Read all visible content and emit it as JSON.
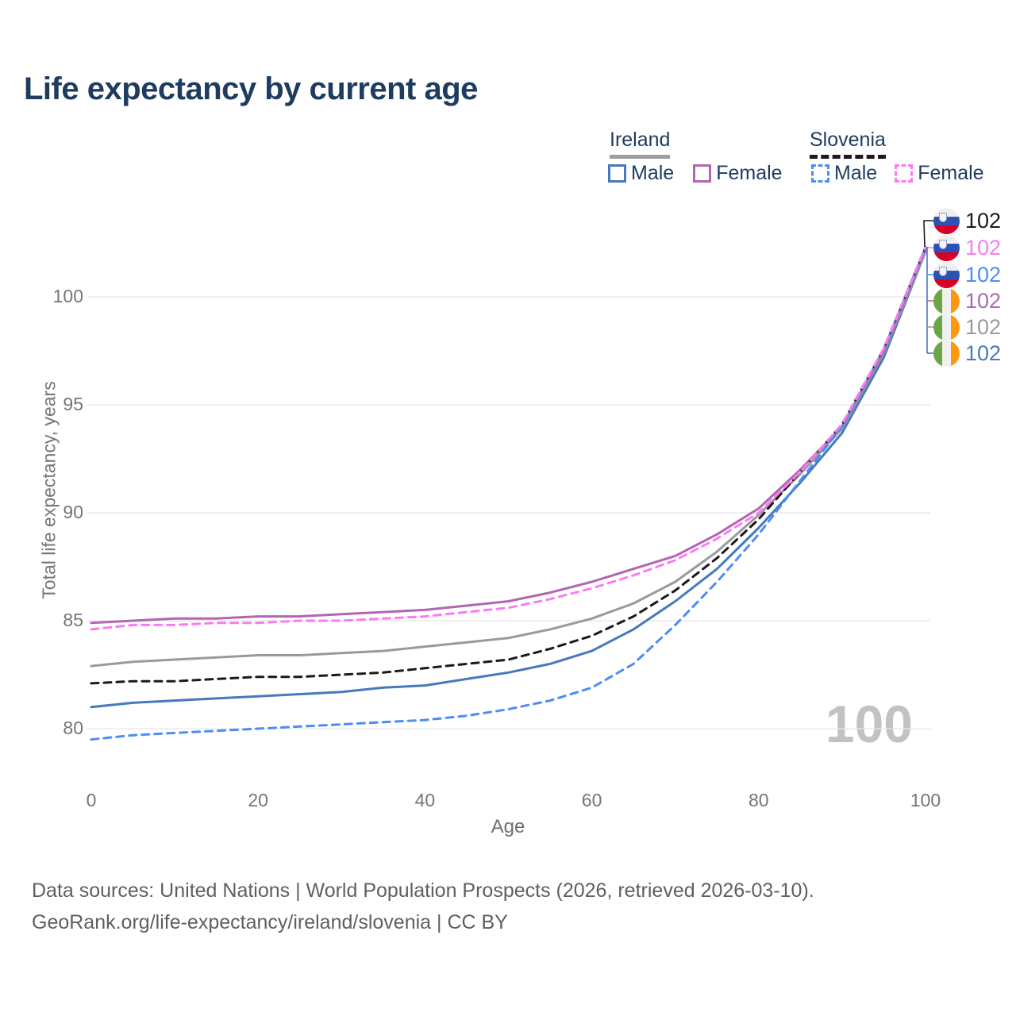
{
  "title": "Life expectancy by current age",
  "legend": {
    "groups": [
      {
        "name": "Ireland",
        "style": "solid",
        "items": [
          {
            "label": "Male",
            "color": "#4679bd"
          },
          {
            "label": "Female",
            "color": "#b266b2"
          }
        ]
      },
      {
        "name": "Slovenia",
        "style": "dashed",
        "items": [
          {
            "label": "Male",
            "color": "#4d8df5"
          },
          {
            "label": "Female",
            "color": "#fb7bf2"
          }
        ]
      }
    ]
  },
  "watermark": "100",
  "end_labels": [
    {
      "value": "102",
      "country": "Slovenia",
      "series": "Slovenia total",
      "flag": "slovenia",
      "color": "#1a1a1a"
    },
    {
      "value": "102",
      "country": "Slovenia",
      "series": "Slovenia female",
      "flag": "slovenia",
      "color": "#fb7bf2"
    },
    {
      "value": "102",
      "country": "Slovenia",
      "series": "Slovenia male",
      "flag": "slovenia",
      "color": "#4d8df5"
    },
    {
      "value": "102",
      "country": "Ireland",
      "series": "Ireland female",
      "flag": "ireland",
      "color": "#a96aad"
    },
    {
      "value": "102",
      "country": "Ireland",
      "series": "Ireland total",
      "flag": "ireland",
      "color": "#9b9b9b"
    },
    {
      "value": "102",
      "country": "Ireland",
      "series": "Ireland male",
      "flag": "ireland",
      "color": "#4679bd"
    }
  ],
  "footer": {
    "line1": "Data sources: United Nations | World Population Prospects (2026, retrieved 2026-03-10).",
    "line2": "GeoRank.org/life-expectancy/ireland/slovenia | CC BY"
  },
  "chart_data": {
    "type": "line",
    "title": "Life expectancy by current age",
    "xlabel": "Age",
    "ylabel": "Total life expectancy, years",
    "xlim": [
      0,
      100
    ],
    "ylim": [
      79,
      103
    ],
    "xticks": [
      0,
      20,
      40,
      60,
      80,
      100
    ],
    "yticks": [
      80,
      85,
      90,
      95,
      100
    ],
    "grid": "horizontal",
    "legend_position": "top-right",
    "x": [
      0,
      5,
      10,
      15,
      20,
      25,
      30,
      35,
      40,
      45,
      50,
      55,
      60,
      65,
      70,
      75,
      80,
      85,
      90,
      95,
      100
    ],
    "series": [
      {
        "name": "Ireland male",
        "color": "#4679bd",
        "dash": "solid",
        "values": [
          81.0,
          81.2,
          81.3,
          81.4,
          81.5,
          81.6,
          81.7,
          81.9,
          82.0,
          82.3,
          82.6,
          83.0,
          83.6,
          84.6,
          85.9,
          87.4,
          89.3,
          91.4,
          93.7,
          97.2,
          102.1
        ]
      },
      {
        "name": "Ireland total",
        "color": "#9a9a9a",
        "dash": "solid",
        "values": [
          82.9,
          83.1,
          83.2,
          83.3,
          83.4,
          83.4,
          83.5,
          83.6,
          83.8,
          84.0,
          84.2,
          84.6,
          85.1,
          85.8,
          86.8,
          88.2,
          89.9,
          91.8,
          93.9,
          97.4,
          102.1
        ]
      },
      {
        "name": "Ireland female",
        "color": "#b266b2",
        "dash": "solid",
        "values": [
          84.9,
          85.0,
          85.1,
          85.1,
          85.2,
          85.2,
          85.3,
          85.4,
          85.5,
          85.7,
          85.9,
          86.3,
          86.8,
          87.4,
          88.0,
          89.0,
          90.2,
          92.0,
          94.0,
          97.5,
          102.2
        ]
      },
      {
        "name": "Slovenia male",
        "color": "#4d8df5",
        "dash": "dashed",
        "values": [
          79.5,
          79.7,
          79.8,
          79.9,
          80.0,
          80.1,
          80.2,
          80.3,
          80.4,
          80.6,
          80.9,
          81.3,
          81.9,
          83.0,
          84.8,
          86.8,
          89.0,
          91.5,
          94.0,
          97.6,
          102.3
        ]
      },
      {
        "name": "Slovenia total",
        "color": "#1a1a1a",
        "dash": "dashed",
        "values": [
          82.1,
          82.2,
          82.2,
          82.3,
          82.4,
          82.4,
          82.5,
          82.6,
          82.8,
          83.0,
          83.2,
          83.7,
          84.3,
          85.2,
          86.4,
          87.9,
          89.7,
          91.9,
          94.1,
          97.6,
          102.3
        ]
      },
      {
        "name": "Slovenia female",
        "color": "#fb7bf2",
        "dash": "dashed",
        "values": [
          84.6,
          84.8,
          84.8,
          84.9,
          84.9,
          85.0,
          85.0,
          85.1,
          85.2,
          85.4,
          85.6,
          86.0,
          86.5,
          87.1,
          87.8,
          88.8,
          90.0,
          91.9,
          94.1,
          97.6,
          102.3
        ]
      }
    ]
  }
}
